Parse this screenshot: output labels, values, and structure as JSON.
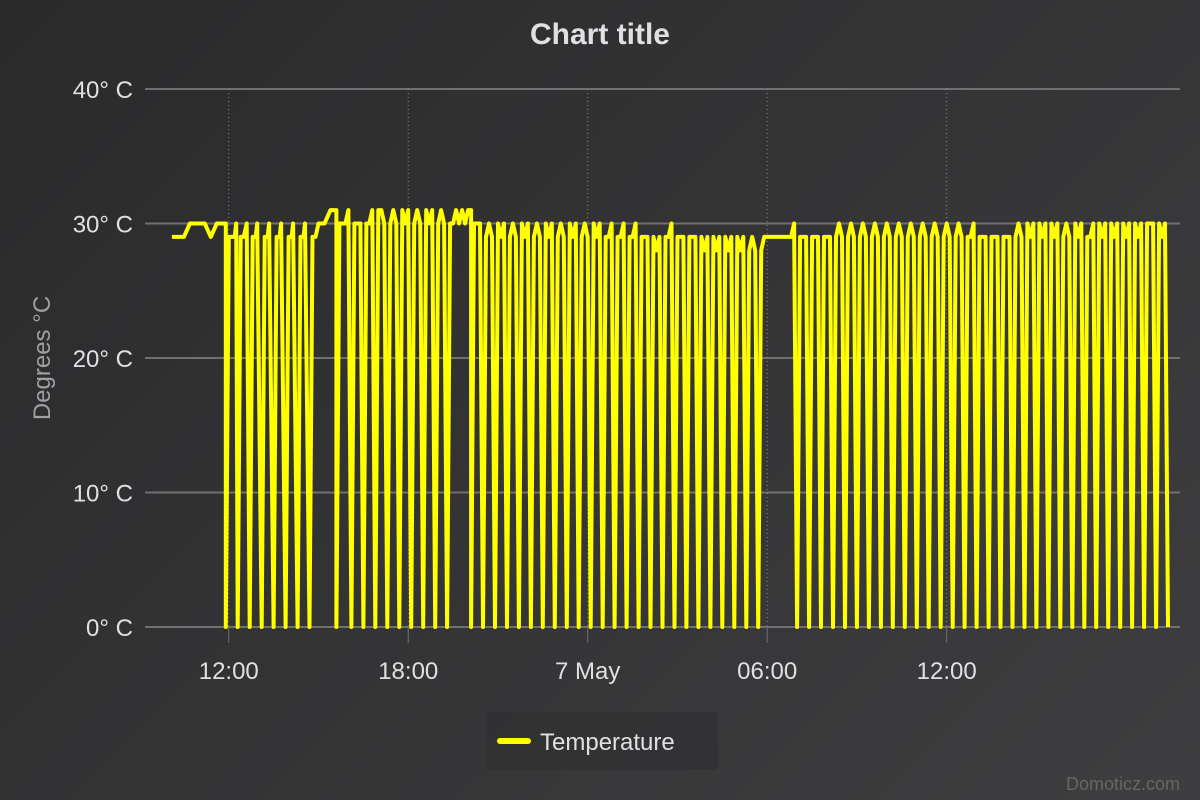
{
  "chart_data": {
    "type": "line",
    "title": "Chart title",
    "ylabel": "Degrees °C",
    "xlabel": "",
    "ylim": [
      0,
      40
    ],
    "y_ticks": [
      {
        "value": 0,
        "label": "0° C"
      },
      {
        "value": 10,
        "label": "10° C"
      },
      {
        "value": 20,
        "label": "20° C"
      },
      {
        "value": 30,
        "label": "30° C"
      },
      {
        "value": 40,
        "label": "40° C"
      }
    ],
    "x_unit": "hours from 6 May 00:00",
    "xlim": [
      9.2,
      43.8
    ],
    "x_ticks": [
      {
        "value": 12,
        "label": "12:00"
      },
      {
        "value": 18,
        "label": "18:00"
      },
      {
        "value": 24,
        "label": "7 May"
      },
      {
        "value": 30,
        "label": "06:00"
      },
      {
        "value": 36,
        "label": "12:00"
      }
    ],
    "grid": true,
    "legend": "bottom-center",
    "series": [
      {
        "name": "Temperature",
        "color": "#ffff00",
        "points": [
          [
            10.1,
            29
          ],
          [
            10.5,
            29
          ],
          [
            10.7,
            30
          ],
          [
            11.2,
            30
          ],
          [
            11.4,
            29
          ],
          [
            11.6,
            30
          ],
          [
            11.9,
            30
          ],
          [
            11.9,
            0
          ],
          [
            12.0,
            29
          ],
          [
            12.2,
            29
          ],
          [
            12.25,
            30
          ],
          [
            12.3,
            0
          ],
          [
            12.4,
            29
          ],
          [
            12.5,
            29
          ],
          [
            12.6,
            30
          ],
          [
            12.7,
            0
          ],
          [
            12.8,
            29
          ],
          [
            12.9,
            29
          ],
          [
            12.95,
            30
          ],
          [
            13.1,
            0
          ],
          [
            13.2,
            29
          ],
          [
            13.3,
            29
          ],
          [
            13.35,
            30
          ],
          [
            13.5,
            0
          ],
          [
            13.6,
            29
          ],
          [
            13.7,
            29
          ],
          [
            13.75,
            30
          ],
          [
            13.9,
            0
          ],
          [
            14.0,
            29
          ],
          [
            14.1,
            29
          ],
          [
            14.15,
            30
          ],
          [
            14.3,
            0
          ],
          [
            14.4,
            29
          ],
          [
            14.5,
            29
          ],
          [
            14.55,
            30
          ],
          [
            14.7,
            0
          ],
          [
            14.8,
            29
          ],
          [
            14.9,
            29
          ],
          [
            15.0,
            30
          ],
          [
            15.2,
            30
          ],
          [
            15.4,
            31
          ],
          [
            15.6,
            31
          ],
          [
            15.6,
            0
          ],
          [
            15.7,
            30
          ],
          [
            15.9,
            30
          ],
          [
            16.0,
            31
          ],
          [
            16.1,
            0
          ],
          [
            16.2,
            30
          ],
          [
            16.3,
            30
          ],
          [
            16.4,
            30
          ],
          [
            16.5,
            0
          ],
          [
            16.6,
            30
          ],
          [
            16.7,
            30
          ],
          [
            16.8,
            31
          ],
          [
            16.9,
            0
          ],
          [
            17.0,
            31
          ],
          [
            17.1,
            31
          ],
          [
            17.2,
            30
          ],
          [
            17.3,
            0
          ],
          [
            17.4,
            30
          ],
          [
            17.5,
            31
          ],
          [
            17.6,
            30
          ],
          [
            17.7,
            0
          ],
          [
            17.8,
            31
          ],
          [
            17.9,
            30
          ],
          [
            18.0,
            31
          ],
          [
            18.1,
            0
          ],
          [
            18.2,
            30
          ],
          [
            18.3,
            31
          ],
          [
            18.4,
            30
          ],
          [
            18.5,
            0
          ],
          [
            18.6,
            31
          ],
          [
            18.7,
            30
          ],
          [
            18.8,
            31
          ],
          [
            18.9,
            0
          ],
          [
            19.0,
            30
          ],
          [
            19.1,
            31
          ],
          [
            19.2,
            30
          ],
          [
            19.3,
            0
          ],
          [
            19.4,
            30
          ],
          [
            19.5,
            30
          ],
          [
            19.6,
            31
          ],
          [
            19.7,
            30
          ],
          [
            19.8,
            31
          ],
          [
            19.9,
            30
          ],
          [
            20.0,
            31
          ],
          [
            20.1,
            31
          ],
          [
            20.1,
            0
          ],
          [
            20.2,
            30
          ],
          [
            20.3,
            30
          ],
          [
            20.4,
            30
          ],
          [
            20.5,
            0
          ],
          [
            20.6,
            29
          ],
          [
            20.7,
            30
          ],
          [
            20.8,
            29
          ],
          [
            20.9,
            0
          ],
          [
            21.0,
            30
          ],
          [
            21.1,
            29
          ],
          [
            21.2,
            30
          ],
          [
            21.3,
            0
          ],
          [
            21.4,
            29
          ],
          [
            21.5,
            30
          ],
          [
            21.6,
            29
          ],
          [
            21.7,
            0
          ],
          [
            21.8,
            30
          ],
          [
            21.9,
            29
          ],
          [
            22.0,
            30
          ],
          [
            22.1,
            0
          ],
          [
            22.2,
            29
          ],
          [
            22.3,
            30
          ],
          [
            22.4,
            29
          ],
          [
            22.5,
            0
          ],
          [
            22.6,
            30
          ],
          [
            22.7,
            29
          ],
          [
            22.8,
            30
          ],
          [
            22.9,
            0
          ],
          [
            23.0,
            29
          ],
          [
            23.1,
            30
          ],
          [
            23.2,
            29
          ],
          [
            23.3,
            0
          ],
          [
            23.4,
            30
          ],
          [
            23.5,
            29
          ],
          [
            23.6,
            30
          ],
          [
            23.7,
            0
          ],
          [
            23.8,
            29
          ],
          [
            23.9,
            30
          ],
          [
            24.0,
            29
          ],
          [
            24.1,
            0
          ],
          [
            24.2,
            30
          ],
          [
            24.3,
            29
          ],
          [
            24.4,
            30
          ],
          [
            24.5,
            0
          ],
          [
            24.6,
            29
          ],
          [
            24.7,
            29
          ],
          [
            24.8,
            30
          ],
          [
            24.9,
            0
          ],
          [
            25.0,
            29
          ],
          [
            25.1,
            29
          ],
          [
            25.2,
            30
          ],
          [
            25.3,
            0
          ],
          [
            25.4,
            29
          ],
          [
            25.5,
            29
          ],
          [
            25.6,
            30
          ],
          [
            25.7,
            0
          ],
          [
            25.8,
            29
          ],
          [
            25.9,
            29
          ],
          [
            26.0,
            29
          ],
          [
            26.1,
            0
          ],
          [
            26.2,
            29
          ],
          [
            26.3,
            28
          ],
          [
            26.4,
            29
          ],
          [
            26.5,
            0
          ],
          [
            26.6,
            29
          ],
          [
            26.7,
            29
          ],
          [
            26.8,
            30
          ],
          [
            26.9,
            0
          ],
          [
            27.0,
            29
          ],
          [
            27.1,
            29
          ],
          [
            27.2,
            29
          ],
          [
            27.3,
            0
          ],
          [
            27.4,
            29
          ],
          [
            27.5,
            29
          ],
          [
            27.6,
            29
          ],
          [
            27.7,
            0
          ],
          [
            27.8,
            29
          ],
          [
            27.9,
            28
          ],
          [
            28.0,
            29
          ],
          [
            28.1,
            0
          ],
          [
            28.2,
            29
          ],
          [
            28.3,
            28
          ],
          [
            28.4,
            29
          ],
          [
            28.5,
            0
          ],
          [
            28.6,
            29
          ],
          [
            28.7,
            28
          ],
          [
            28.8,
            29
          ],
          [
            28.9,
            0
          ],
          [
            29.0,
            29
          ],
          [
            29.1,
            28
          ],
          [
            29.2,
            29
          ],
          [
            29.3,
            0
          ],
          [
            29.4,
            28
          ],
          [
            29.5,
            29
          ],
          [
            29.6,
            28
          ],
          [
            29.7,
            0
          ],
          [
            29.8,
            28
          ],
          [
            29.9,
            29
          ],
          [
            30.0,
            29
          ],
          [
            30.5,
            29
          ],
          [
            30.8,
            29
          ],
          [
            30.9,
            30
          ],
          [
            31.0,
            0
          ],
          [
            31.1,
            29
          ],
          [
            31.2,
            29
          ],
          [
            31.3,
            29
          ],
          [
            31.4,
            0
          ],
          [
            31.5,
            29
          ],
          [
            31.6,
            29
          ],
          [
            31.7,
            29
          ],
          [
            31.8,
            0
          ],
          [
            31.9,
            29
          ],
          [
            32.0,
            29
          ],
          [
            32.1,
            29
          ],
          [
            32.2,
            0
          ],
          [
            32.3,
            29
          ],
          [
            32.4,
            30
          ],
          [
            32.5,
            29
          ],
          [
            32.6,
            0
          ],
          [
            32.7,
            29
          ],
          [
            32.8,
            30
          ],
          [
            32.9,
            29
          ],
          [
            33.0,
            0
          ],
          [
            33.1,
            29
          ],
          [
            33.2,
            30
          ],
          [
            33.3,
            29
          ],
          [
            33.4,
            0
          ],
          [
            33.5,
            29
          ],
          [
            33.6,
            30
          ],
          [
            33.7,
            29
          ],
          [
            33.8,
            0
          ],
          [
            33.9,
            29
          ],
          [
            34.0,
            30
          ],
          [
            34.1,
            29
          ],
          [
            34.2,
            0
          ],
          [
            34.3,
            29
          ],
          [
            34.4,
            30
          ],
          [
            34.5,
            29
          ],
          [
            34.6,
            0
          ],
          [
            34.7,
            29
          ],
          [
            34.8,
            30
          ],
          [
            34.9,
            29
          ],
          [
            35.0,
            0
          ],
          [
            35.1,
            29
          ],
          [
            35.2,
            30
          ],
          [
            35.3,
            29
          ],
          [
            35.4,
            0
          ],
          [
            35.5,
            29
          ],
          [
            35.6,
            30
          ],
          [
            35.7,
            29
          ],
          [
            35.8,
            0
          ],
          [
            35.9,
            29
          ],
          [
            36.0,
            30
          ],
          [
            36.1,
            29
          ],
          [
            36.2,
            0
          ],
          [
            36.3,
            29
          ],
          [
            36.4,
            30
          ],
          [
            36.5,
            29
          ],
          [
            36.6,
            0
          ],
          [
            36.7,
            29
          ],
          [
            36.8,
            29
          ],
          [
            36.9,
            30
          ],
          [
            37.0,
            0
          ],
          [
            37.1,
            29
          ],
          [
            37.2,
            29
          ],
          [
            37.3,
            29
          ],
          [
            37.4,
            0
          ],
          [
            37.5,
            29
          ],
          [
            37.6,
            29
          ],
          [
            37.7,
            29
          ],
          [
            37.8,
            0
          ],
          [
            37.9,
            29
          ],
          [
            38.0,
            29
          ],
          [
            38.1,
            29
          ],
          [
            38.2,
            0
          ],
          [
            38.3,
            29
          ],
          [
            38.4,
            30
          ],
          [
            38.5,
            29
          ],
          [
            38.6,
            0
          ],
          [
            38.7,
            30
          ],
          [
            38.8,
            29
          ],
          [
            38.9,
            30
          ],
          [
            39.0,
            0
          ],
          [
            39.1,
            30
          ],
          [
            39.2,
            29
          ],
          [
            39.3,
            30
          ],
          [
            39.4,
            0
          ],
          [
            39.5,
            30
          ],
          [
            39.6,
            29
          ],
          [
            39.7,
            30
          ],
          [
            39.8,
            0
          ],
          [
            39.9,
            29
          ],
          [
            40.0,
            30
          ],
          [
            40.1,
            29
          ],
          [
            40.2,
            0
          ],
          [
            40.3,
            30
          ],
          [
            40.4,
            29
          ],
          [
            40.5,
            30
          ],
          [
            40.6,
            0
          ],
          [
            40.7,
            29
          ],
          [
            40.8,
            29
          ],
          [
            40.9,
            30
          ],
          [
            41.0,
            0
          ],
          [
            41.1,
            30
          ],
          [
            41.2,
            29
          ],
          [
            41.3,
            30
          ],
          [
            41.4,
            0
          ],
          [
            41.5,
            30
          ],
          [
            41.6,
            29
          ],
          [
            41.7,
            30
          ],
          [
            41.8,
            0
          ],
          [
            41.9,
            30
          ],
          [
            42.0,
            29
          ],
          [
            42.1,
            30
          ],
          [
            42.2,
            0
          ],
          [
            42.3,
            30
          ],
          [
            42.4,
            29
          ],
          [
            42.5,
            30
          ],
          [
            42.6,
            0
          ],
          [
            42.7,
            30
          ],
          [
            42.8,
            30
          ],
          [
            42.9,
            30
          ],
          [
            43.0,
            0
          ],
          [
            43.1,
            30
          ],
          [
            43.2,
            29
          ],
          [
            43.3,
            30
          ],
          [
            43.4,
            0
          ]
        ]
      }
    ]
  },
  "credits": "Domoticz.com"
}
